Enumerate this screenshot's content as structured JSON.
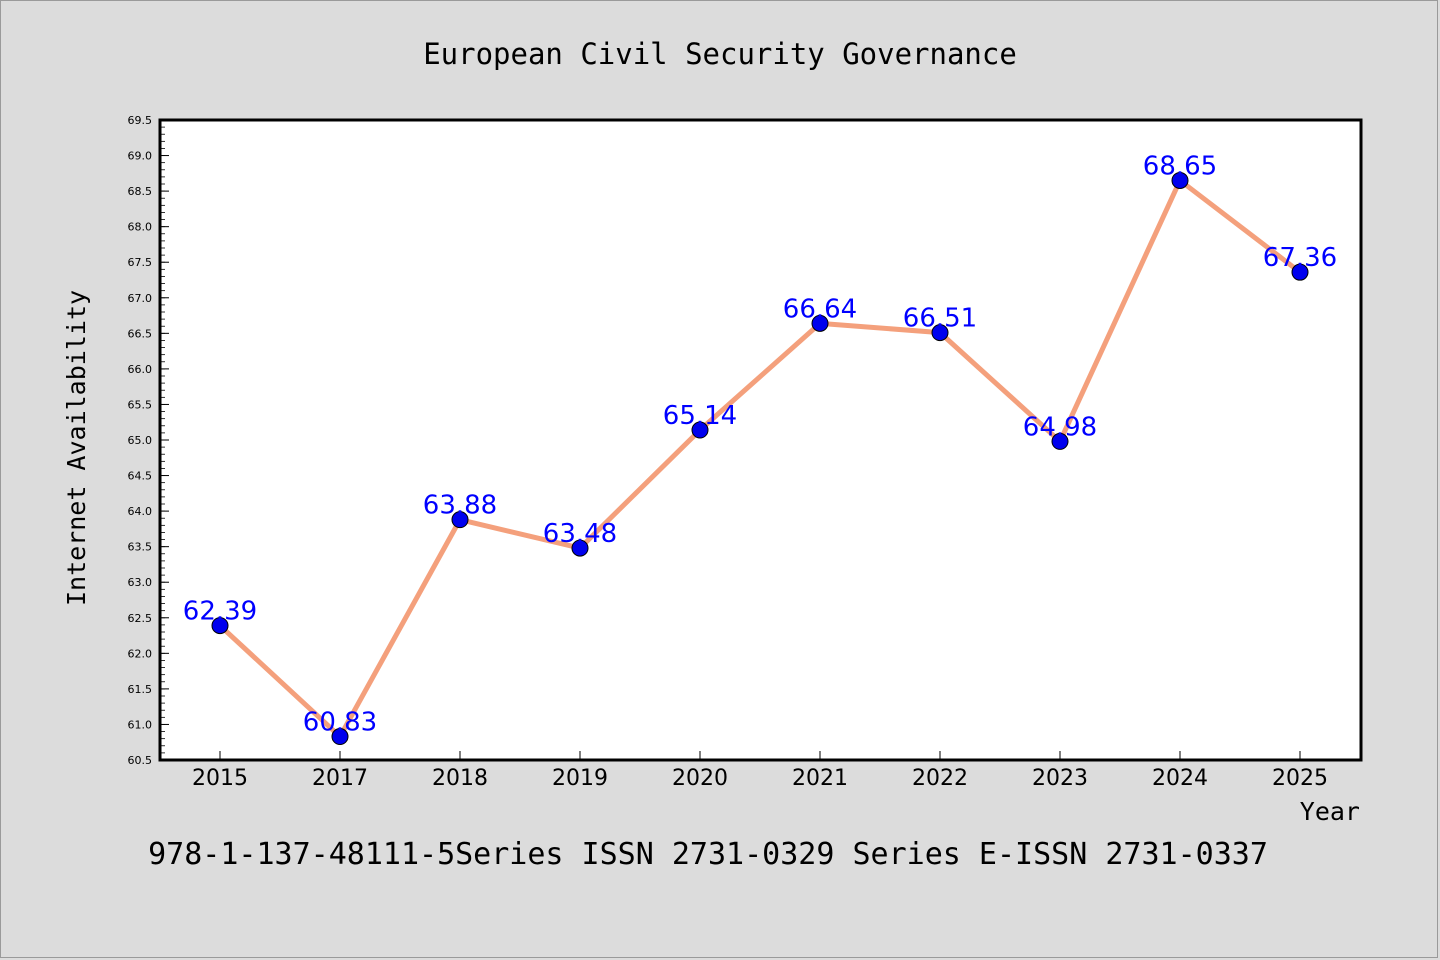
{
  "chart_data": {
    "type": "line",
    "title": "European Civil Security Governance",
    "xlabel": "Year",
    "ylabel": "Internet Availability",
    "categories": [
      "2015",
      "2017",
      "2018",
      "2019",
      "2020",
      "2021",
      "2022",
      "2023",
      "2024",
      "2025"
    ],
    "series": [
      {
        "values": [
          62.39,
          60.83,
          63.88,
          63.48,
          65.14,
          66.64,
          66.51,
          64.98,
          68.65,
          67.36
        ],
        "labels": [
          "62.39",
          "60.83",
          "63.88",
          "63.48",
          "65.14",
          "66.64",
          "66.51",
          "64.98",
          "68.65",
          "67.36"
        ],
        "line_color": "#f4a07c",
        "marker_color": "#0000ee"
      }
    ],
    "ylim": [
      60.5,
      69.5
    ],
    "yticks": [
      "60.5",
      "61.0",
      "61.5",
      "62.0",
      "62.5",
      "63.0",
      "63.5",
      "64.0",
      "64.5",
      "65.0",
      "65.5",
      "66.0",
      "66.5",
      "67.0",
      "67.5",
      "68.0",
      "68.5",
      "69.0",
      "69.5"
    ],
    "grid": false,
    "label_color": "#0000ff"
  },
  "footer": "978-1-137-48111-5Series ISSN 2731-0329 Series E-ISSN 2731-0337"
}
